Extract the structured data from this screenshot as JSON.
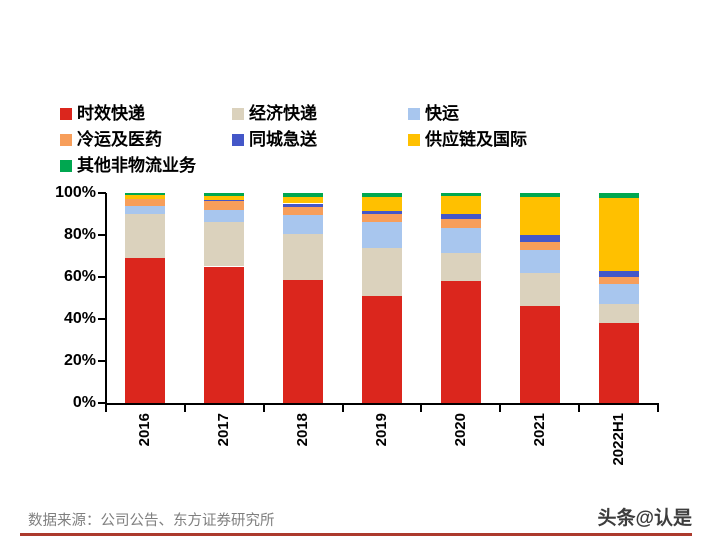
{
  "chart_data": {
    "type": "bar",
    "stacked": true,
    "percent_stacked": true,
    "title": "",
    "categories": [
      "2016",
      "2017",
      "2018",
      "2019",
      "2020",
      "2021",
      "2022H1"
    ],
    "series": [
      {
        "name": "时效快递",
        "color": "#DB261D",
        "values": [
          69,
          65,
          58.5,
          51,
          58,
          46,
          38
        ]
      },
      {
        "name": "经济快递",
        "color": "#DBD2BD",
        "values": [
          21,
          21,
          22,
          23,
          13.5,
          16,
          9
        ]
      },
      {
        "name": "快运",
        "color": "#A8C6EE",
        "values": [
          4,
          6,
          9,
          12,
          12,
          11,
          9.5
        ]
      },
      {
        "name": "冷运及医药",
        "color": "#F79E5A",
        "values": [
          3,
          4,
          4,
          4,
          4,
          3.5,
          3.5
        ]
      },
      {
        "name": "同城急送",
        "color": "#4457C8",
        "values": [
          0,
          0.5,
          1.5,
          1.5,
          2.5,
          3.5,
          3
        ]
      },
      {
        "name": "供应链及国际",
        "color": "#FFC000",
        "values": [
          2,
          2,
          3,
          6.5,
          8.5,
          18,
          34.5
        ]
      },
      {
        "name": "其他非物流业务",
        "color": "#00A750",
        "values": [
          1,
          1.5,
          2,
          2,
          1.5,
          2,
          2.5
        ]
      }
    ],
    "y_ticks": [
      "100%",
      "80%",
      "60%",
      "40%",
      "20%",
      "0%"
    ],
    "ylim": [
      0,
      100
    ],
    "ylabel": "",
    "xlabel": "",
    "grid": false,
    "legend_position": "top-left"
  },
  "footer": {
    "source": "数据来源：公司公告、东方证券研究所",
    "watermark": "头条@认是"
  },
  "colors": {
    "background": "#FFFFFF",
    "axis": "#000000",
    "source_text": "#7F7F7F",
    "divider_line": "#AC3A2D",
    "watermark_text": "#3D3D3D"
  }
}
